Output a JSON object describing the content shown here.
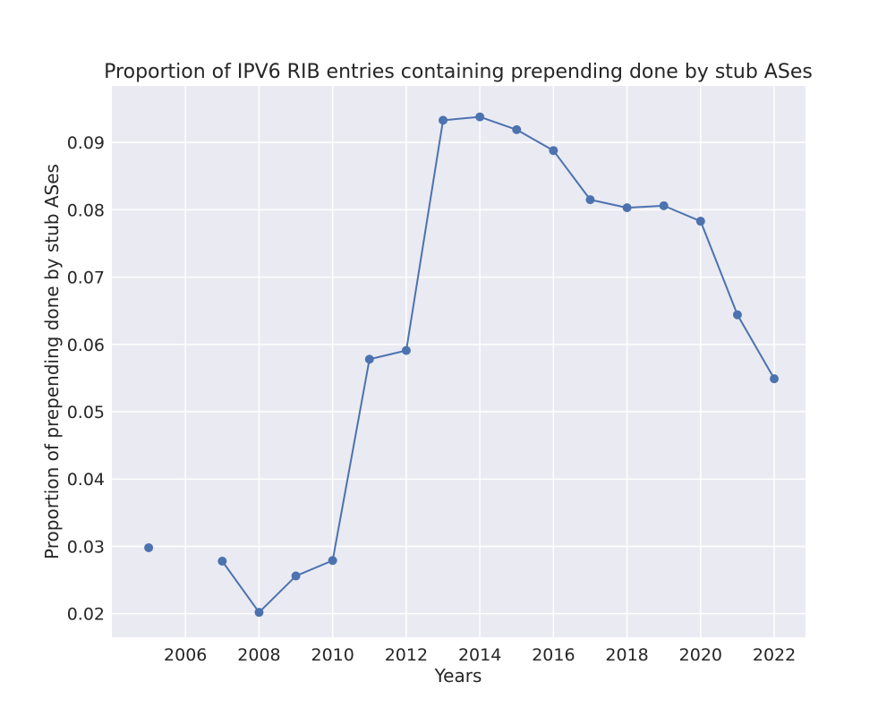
{
  "chart_data": {
    "type": "line",
    "title": "Proportion of IPV6 RIB entries containing prepending done by stub ASes",
    "xlabel": "Years",
    "ylabel": "Proportion of prepending done by stub ASes",
    "xlim": [
      2004.0,
      2022.85
    ],
    "ylim": [
      0.0165,
      0.0984
    ],
    "xticks": [
      2006,
      2008,
      2010,
      2012,
      2014,
      2016,
      2018,
      2020,
      2022
    ],
    "xtick_labels": [
      "2006",
      "2008",
      "2010",
      "2012",
      "2014",
      "2016",
      "2018",
      "2020",
      "2022"
    ],
    "yticks": [
      0.02,
      0.03,
      0.04,
      0.05,
      0.06,
      0.07,
      0.08,
      0.09
    ],
    "ytick_labels": [
      "0.02",
      "0.03",
      "0.04",
      "0.05",
      "0.06",
      "0.07",
      "0.08",
      "0.09"
    ],
    "grid": true,
    "legend": null,
    "series": [
      {
        "color": "#4c72b0",
        "x": [
          2005,
          2006,
          2007,
          2008,
          2009,
          2010,
          2011,
          2012,
          2013,
          2014,
          2015,
          2016,
          2017,
          2018,
          2019,
          2020,
          2021,
          2022
        ],
        "y": [
          0.0298,
          null,
          0.0278,
          0.0202,
          0.0256,
          0.0279,
          0.0578,
          0.0591,
          0.0933,
          0.0938,
          0.0919,
          0.0888,
          0.0815,
          0.0803,
          0.0806,
          0.0783,
          0.0644,
          0.0549
        ]
      }
    ],
    "colors": {
      "background": "#eaeaf2",
      "grid": "#ffffff",
      "line": "#4c72b0",
      "text": "#262626"
    }
  }
}
